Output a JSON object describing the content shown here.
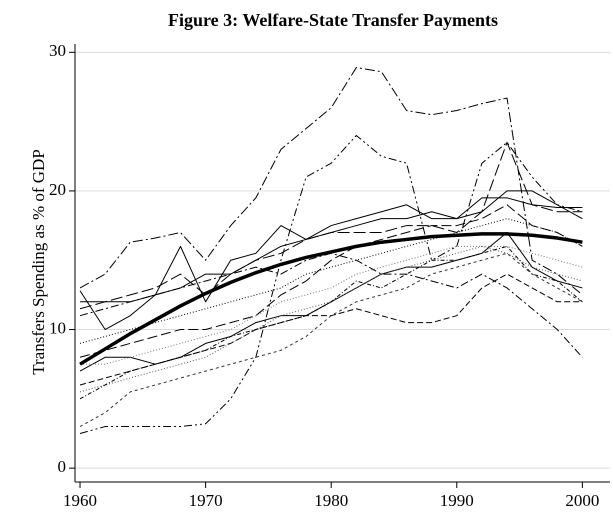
{
  "chart_data": {
    "type": "line",
    "title": "Figure 3: Welfare-State Transfer Payments",
    "y_label": "Transfers Spending as % of GDP",
    "x": [
      1960,
      1962,
      1964,
      1966,
      1968,
      1970,
      1972,
      1974,
      1976,
      1978,
      1980,
      1982,
      1984,
      1986,
      1988,
      1990,
      1992,
      1994,
      1996,
      1998,
      2000
    ],
    "xlim": [
      1959.6,
      2002.2
    ],
    "xticks": [
      1960,
      1970,
      1980,
      1990,
      2000
    ],
    "ylim": [
      -1,
      30.6
    ],
    "yticks": [
      0,
      10,
      20,
      30
    ],
    "grid": true,
    "series": [
      {
        "color": "#000000",
        "width": 3.5,
        "dash": "none",
        "values": [
          7.5,
          8.6,
          9.7,
          10.7,
          11.7,
          12.6,
          13.4,
          14.1,
          14.7,
          15.2,
          15.6,
          16.0,
          16.3,
          16.5,
          16.7,
          16.8,
          16.9,
          16.9,
          16.8,
          16.6,
          16.3
        ]
      },
      {
        "color": "#000000",
        "width": 1,
        "dash": "10 3 2 3",
        "values": [
          13,
          14,
          16.3,
          16.6,
          17,
          15,
          17.5,
          19.5,
          23,
          24.5,
          26,
          28.9,
          28.6,
          25.8,
          25.5,
          25.8,
          26.3,
          26.7,
          15,
          14,
          12.5
        ]
      },
      {
        "color": "#000000",
        "width": 1,
        "dash": "8 3 2 3 2 3",
        "values": [
          2.5,
          3,
          3,
          3,
          3,
          3.2,
          5,
          8,
          15,
          21,
          22,
          24,
          22.5,
          22,
          15,
          16,
          22,
          23.5,
          21,
          19,
          18.5
        ]
      },
      {
        "color": "#000000",
        "width": 1,
        "dash": "none",
        "values": [
          12.8,
          10,
          11,
          12.5,
          16,
          12,
          15,
          15.5,
          17.5,
          16.5,
          17.5,
          18,
          18.5,
          19,
          18,
          18,
          19.5,
          19.5,
          19,
          18.8,
          18.8
        ]
      },
      {
        "color": "#000000",
        "width": 1,
        "dash": "1 2",
        "values": [
          9,
          9.5,
          10,
          10.5,
          11,
          11.5,
          12,
          12.5,
          13,
          14,
          14.5,
          15,
          15.5,
          16,
          16.5,
          17,
          17.5,
          18,
          17.5,
          17,
          16
        ]
      },
      {
        "color": "#000000",
        "width": 1,
        "dash": "12 4",
        "values": [
          11.5,
          12,
          12.5,
          13,
          14,
          12.5,
          14,
          15,
          15.5,
          16.5,
          17,
          17,
          17,
          17.5,
          17.5,
          17,
          18.5,
          23.5,
          19,
          18.5,
          18.5
        ]
      },
      {
        "color": "#000000",
        "width": 1,
        "dash": "6 3",
        "values": [
          6,
          6.5,
          7,
          7.5,
          8,
          8.5,
          9,
          10,
          10.5,
          11,
          11,
          11.5,
          11,
          10.5,
          10.5,
          11,
          13,
          14,
          13,
          12,
          12
        ]
      },
      {
        "color": "#000000",
        "width": 1,
        "dash": "none",
        "values": [
          7,
          8,
          8,
          7.5,
          8,
          9,
          9.5,
          10.5,
          11,
          11,
          12,
          13,
          14,
          14.5,
          14.5,
          15,
          15.5,
          17,
          14.5,
          13.5,
          13
        ]
      },
      {
        "color": "#555555",
        "width": 1,
        "dash": "1 2",
        "values": [
          5.5,
          6,
          6.5,
          7,
          7.5,
          8,
          9,
          10,
          11,
          11.5,
          12,
          13,
          14,
          14.5,
          15,
          15.5,
          16,
          15.5,
          14.5,
          14,
          13.5
        ]
      },
      {
        "color": "#000000",
        "width": 1,
        "dash": "10 4",
        "values": [
          8,
          8.5,
          9,
          9.5,
          10,
          10,
          10.5,
          11,
          12.5,
          13.5,
          15,
          16,
          16.5,
          17,
          17.5,
          17.5,
          18,
          19,
          17.5,
          17,
          16
        ]
      },
      {
        "color": "#000000",
        "width": 1,
        "dash": "4 2 1 2",
        "values": [
          5,
          6,
          7,
          7.5,
          8,
          8.5,
          9.5,
          10,
          10.5,
          11,
          12,
          13.5,
          13,
          14,
          15,
          15,
          15.5,
          16,
          14,
          13.5,
          12
        ]
      },
      {
        "color": "#333333",
        "width": 1,
        "dash": "3 3",
        "values": [
          3,
          4,
          5.5,
          6,
          6.5,
          7,
          7.5,
          8,
          8.5,
          9.5,
          11,
          12,
          12.5,
          13,
          14,
          14.5,
          15,
          15.5,
          14,
          13,
          12
        ]
      },
      {
        "color": "#000000",
        "width": 1,
        "dash": "8 3 2 3",
        "values": [
          11,
          11.5,
          12,
          12.5,
          13,
          13.5,
          14,
          14.5,
          14,
          15,
          15.5,
          15,
          14,
          14,
          13.5,
          13,
          14,
          13,
          11.5,
          10,
          8
        ]
      },
      {
        "color": "#000000",
        "width": 1,
        "dash": "none",
        "values": [
          12,
          12,
          12,
          12.5,
          13,
          14,
          14,
          15,
          16,
          16.5,
          17,
          17.5,
          18,
          18,
          18.5,
          18,
          18.5,
          20,
          20,
          19,
          18
        ]
      },
      {
        "color": "#777777",
        "width": 1,
        "dash": "1 2",
        "values": [
          7.5,
          7.5,
          8,
          8.5,
          9,
          9.5,
          10,
          11,
          12,
          12.5,
          13,
          14,
          14.5,
          15,
          15.5,
          16,
          16,
          16,
          15.5,
          15,
          14.5
        ]
      }
    ]
  }
}
